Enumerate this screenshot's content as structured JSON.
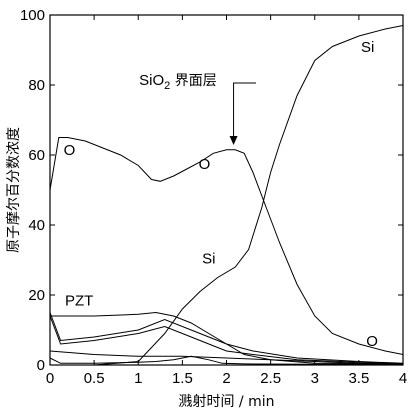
{
  "chart_data": {
    "type": "line",
    "xlabel": "溅射时间 / min",
    "ylabel": "原子摩尔百分数浓度",
    "xlim": [
      0,
      4
    ],
    "ylim": [
      0,
      100
    ],
    "xticks": [
      0,
      0.5,
      1,
      1.5,
      2,
      2.5,
      3,
      3.5,
      4
    ],
    "xtick_labels": [
      "0",
      "0.5",
      "1",
      "1.5",
      "2",
      "2.5",
      "3",
      "3.5",
      "4"
    ],
    "yticks": [
      0,
      20,
      40,
      60,
      80,
      100
    ],
    "ytick_labels": [
      "0",
      "20",
      "40",
      "60",
      "80",
      "100"
    ],
    "grid": false,
    "series": [
      {
        "name": "O",
        "x": [
          0,
          0.1,
          0.2,
          0.4,
          0.6,
          0.8,
          1.0,
          1.15,
          1.25,
          1.4,
          1.55,
          1.7,
          1.85,
          2.0,
          2.1,
          2.2,
          2.3,
          2.45,
          2.6,
          2.8,
          3.0,
          3.2,
          3.5,
          3.8,
          4.0
        ],
        "y": [
          50,
          65,
          65,
          64,
          62,
          60,
          57,
          53,
          52.5,
          54,
          56,
          58,
          60.5,
          61.5,
          61.5,
          60.5,
          55,
          45,
          35,
          23,
          14,
          9,
          6,
          4,
          3
        ]
      },
      {
        "name": "Si",
        "x": [
          0,
          0.5,
          1.0,
          1.3,
          1.5,
          1.7,
          1.9,
          2.1,
          2.25,
          2.4,
          2.5,
          2.6,
          2.8,
          3.0,
          3.2,
          3.5,
          3.8,
          4.0
        ],
        "y": [
          0,
          0,
          1,
          9,
          16,
          21,
          25,
          28,
          33,
          45,
          55,
          63,
          77,
          87,
          91,
          94,
          96,
          97
        ]
      },
      {
        "name": "PZT-1",
        "x": [
          0,
          0.1,
          0.5,
          1.0,
          1.2,
          1.4,
          1.6,
          1.8,
          2.0,
          2.2,
          2.5,
          3.0,
          4.0
        ],
        "y": [
          14,
          14,
          14,
          14.5,
          15,
          14,
          12,
          9,
          6,
          3,
          1.5,
          0.5,
          0.3
        ]
      },
      {
        "name": "PZT-2",
        "x": [
          0,
          0.12,
          0.5,
          1.0,
          1.3,
          1.6,
          1.8,
          2.0,
          2.3,
          2.8,
          3.5,
          4.0
        ],
        "y": [
          15,
          7,
          8,
          10,
          13,
          10,
          8,
          6,
          4,
          2,
          1,
          0.5
        ]
      },
      {
        "name": "PZT-3",
        "x": [
          0,
          0.12,
          0.5,
          1.0,
          1.3,
          1.6,
          1.8,
          2.0,
          2.3,
          2.8,
          3.5,
          4.0
        ],
        "y": [
          14,
          6,
          7,
          9,
          11,
          8,
          6,
          4,
          3,
          1.5,
          0.8,
          0.4
        ]
      },
      {
        "name": "PZT-4",
        "x": [
          0,
          0.5,
          1.0,
          1.5,
          2.0,
          2.5,
          3.0,
          3.5,
          4.0
        ],
        "y": [
          4,
          3,
          2.5,
          2.5,
          2,
          1.5,
          1,
          0.5,
          0.3
        ]
      },
      {
        "name": "PZT-5",
        "x": [
          0,
          0.12,
          0.5,
          1.0,
          1.2,
          1.4,
          1.6,
          1.8,
          1.95,
          2.2,
          3.0,
          4.0
        ],
        "y": [
          2,
          0.5,
          0.5,
          0.8,
          1,
          1.5,
          2.5,
          1.5,
          0.5,
          0.3,
          0.2,
          0.1
        ]
      }
    ],
    "annotations": [
      {
        "text": "O",
        "x": 0.22,
        "y": 60
      },
      {
        "text": "O",
        "x": 1.75,
        "y": 56
      },
      {
        "text": "O",
        "x": 3.65,
        "y": 5.5
      },
      {
        "text": "Si",
        "x": 3.6,
        "y": 89.5
      },
      {
        "text": "Si",
        "x": 1.8,
        "y": 29
      },
      {
        "text": "PZT",
        "x": 0.33,
        "y": 17
      },
      {
        "text": "SiO₂ 界面层",
        "x": 1.45,
        "y": 80,
        "arrow_to": {
          "x": 2.08,
          "y": 62
        }
      }
    ]
  }
}
